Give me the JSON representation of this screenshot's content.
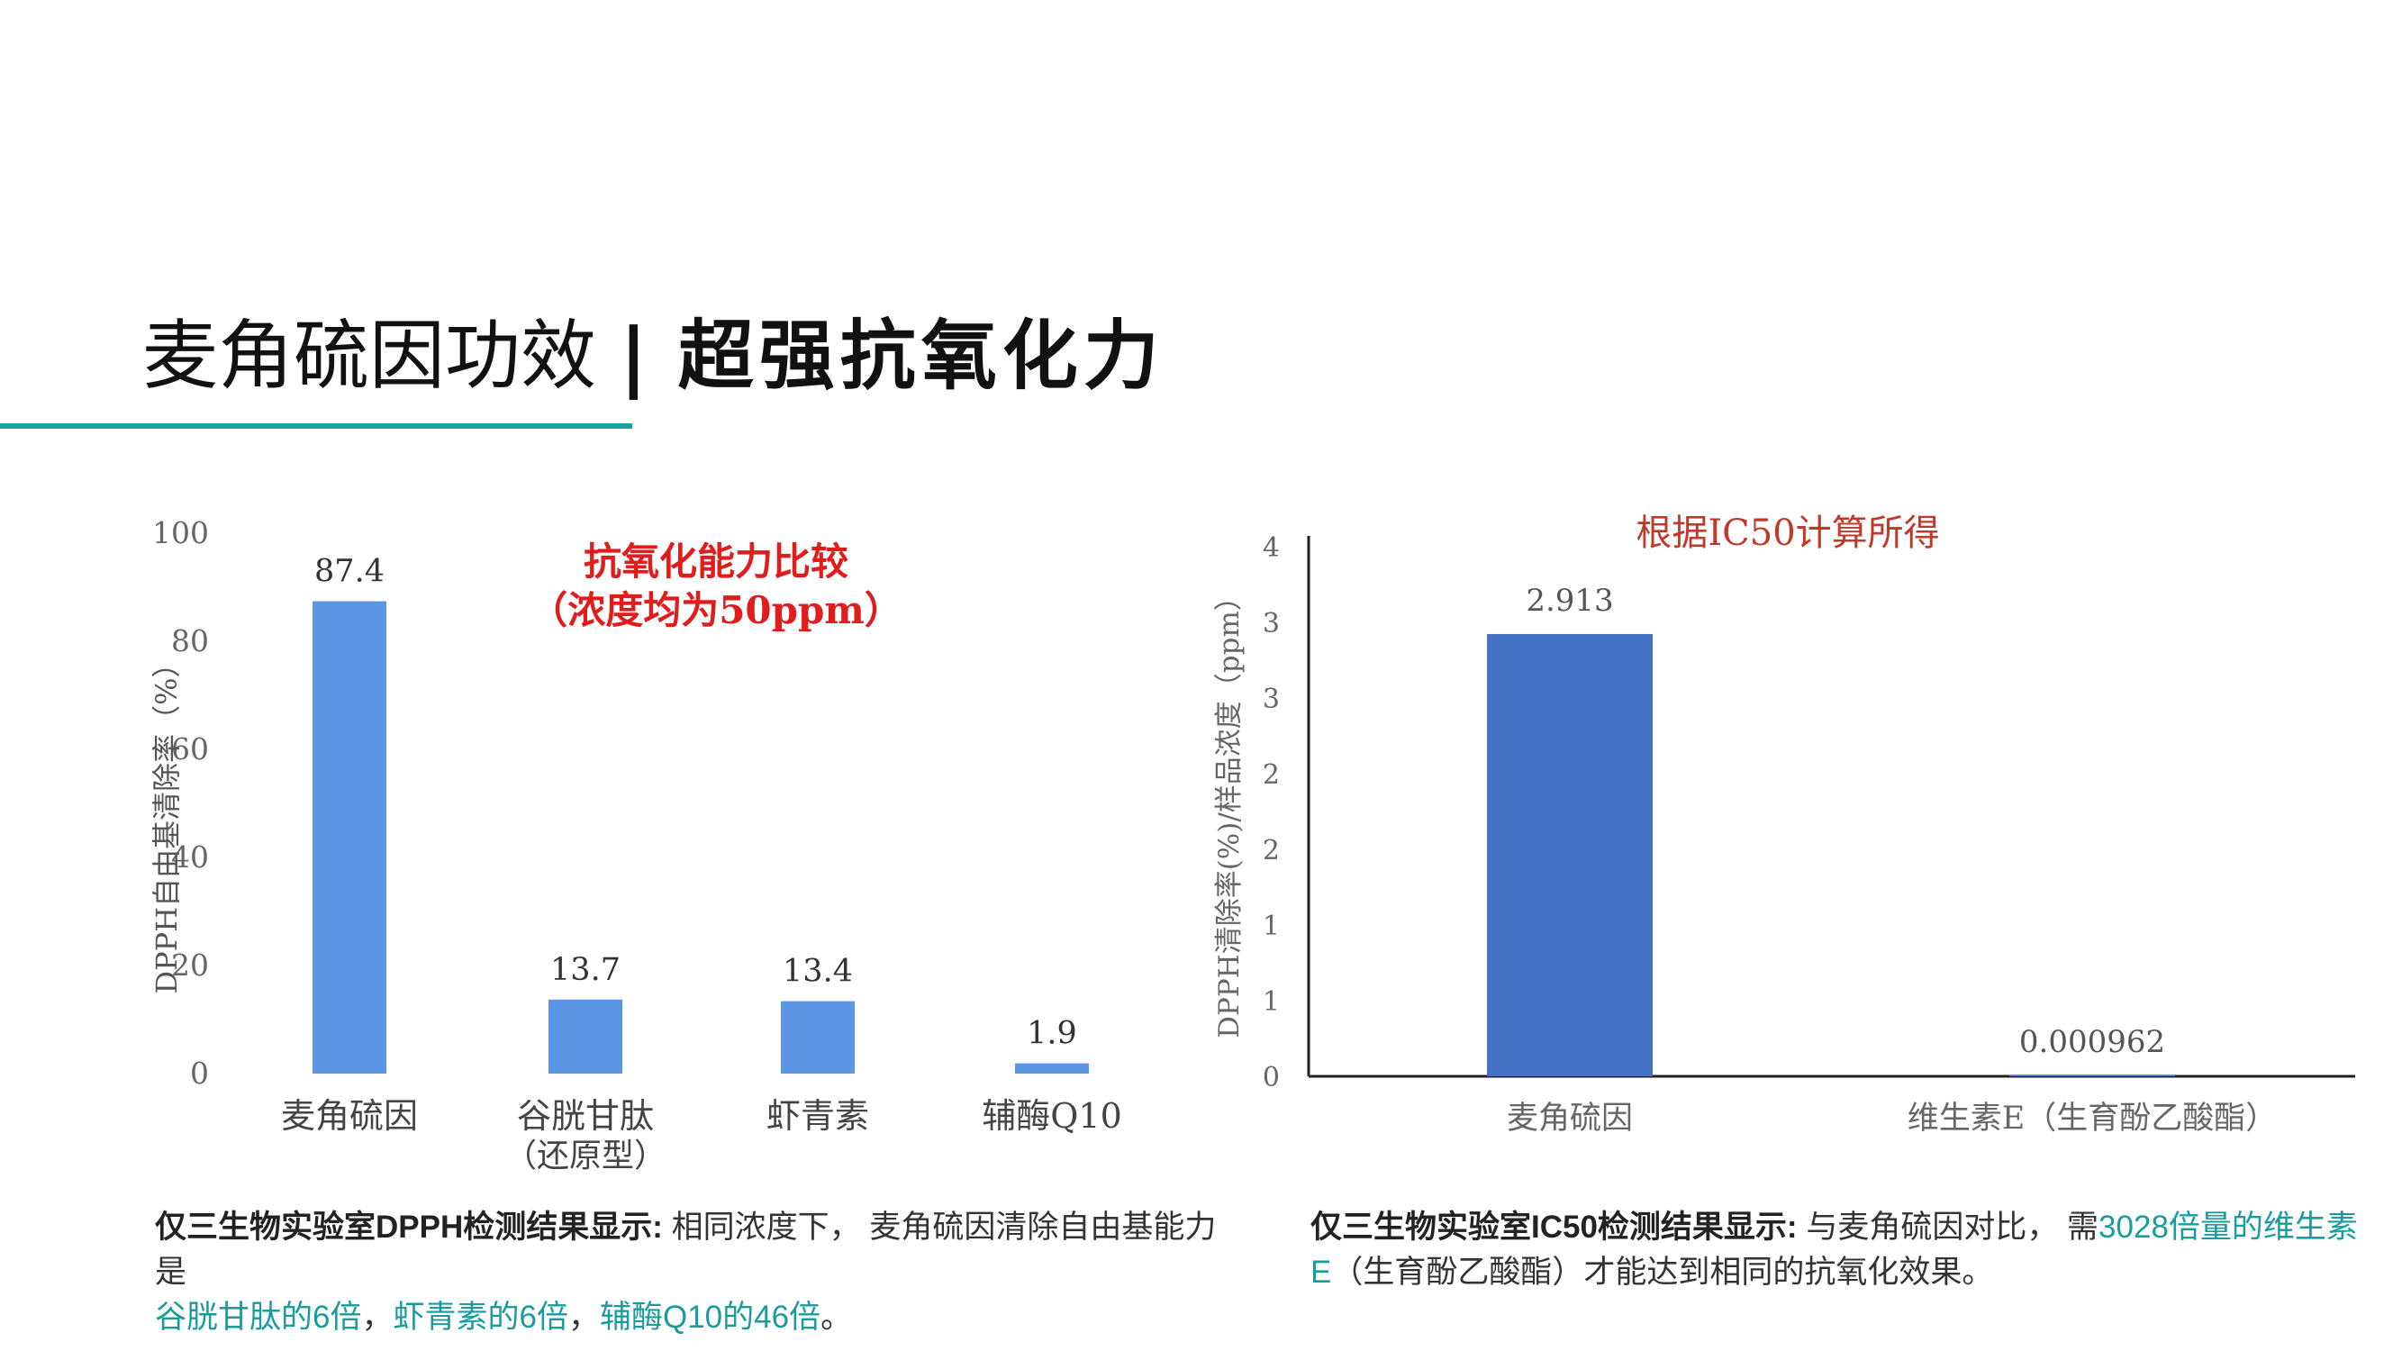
{
  "header": {
    "title_main": "麦角硫因功效",
    "title_sep": "|",
    "title_strong": "超强抗氧化力"
  },
  "colors": {
    "accent_teal": "#1aa3a3",
    "bar_light": "#5b95e3",
    "bar_dark": "#4472c4",
    "red_title": "#e01c1c"
  },
  "chart_data": [
    {
      "type": "bar",
      "title": "抗氧化能力比较",
      "subtitle": "（浓度均为50ppm）",
      "ylabel": "DPPH自由基清除率（%）",
      "xlabel": "",
      "ylim": [
        0,
        100
      ],
      "yticks": [
        "0",
        "20",
        "40",
        "60",
        "80",
        "100"
      ],
      "grid": false,
      "categories": [
        "麦角硫因",
        "谷胱甘肽",
        "虾青素",
        "辅酶Q10"
      ],
      "category_sublabels": [
        "",
        "（还原型）",
        "",
        ""
      ],
      "values": [
        87.4,
        13.7,
        13.4,
        1.9
      ],
      "data_labels": [
        "87.4",
        "13.7",
        "13.4",
        "1.9"
      ]
    },
    {
      "type": "bar",
      "title": "根据IC50计算所得",
      "ylabel": "DPPH清除率(%)/样品浓度（ppm）",
      "xlabel": "",
      "ylim": [
        0,
        3.5
      ],
      "yticks": [
        "0",
        "1",
        "1",
        "2",
        "2",
        "3",
        "3",
        "4"
      ],
      "grid": false,
      "categories": [
        "麦角硫因",
        "维生素E（生育酚乙酸酯）"
      ],
      "values": [
        2.913,
        0.000962
      ],
      "data_labels": [
        "2.913",
        "0.000962"
      ]
    }
  ],
  "captions": {
    "left": {
      "bold": "仅三生物实验室DPPH检测结果显示:",
      "text1": " 相同浓度下， 麦角硫因清除自由基能力是",
      "teal1": "谷胱甘肽的6倍",
      "text2": "，",
      "teal2": "虾青素的6倍",
      "text3": "，",
      "teal3": "辅酶Q10的46倍",
      "text4": "。"
    },
    "right": {
      "bold": "仅三生物实验室IC50检测结果显示:",
      "text1": " 与麦角硫因对比， 需",
      "teal1": "3028倍量的维生素E",
      "text2": "（生育酚乙酸酯）才能达到相同的抗氧化效果。"
    }
  }
}
